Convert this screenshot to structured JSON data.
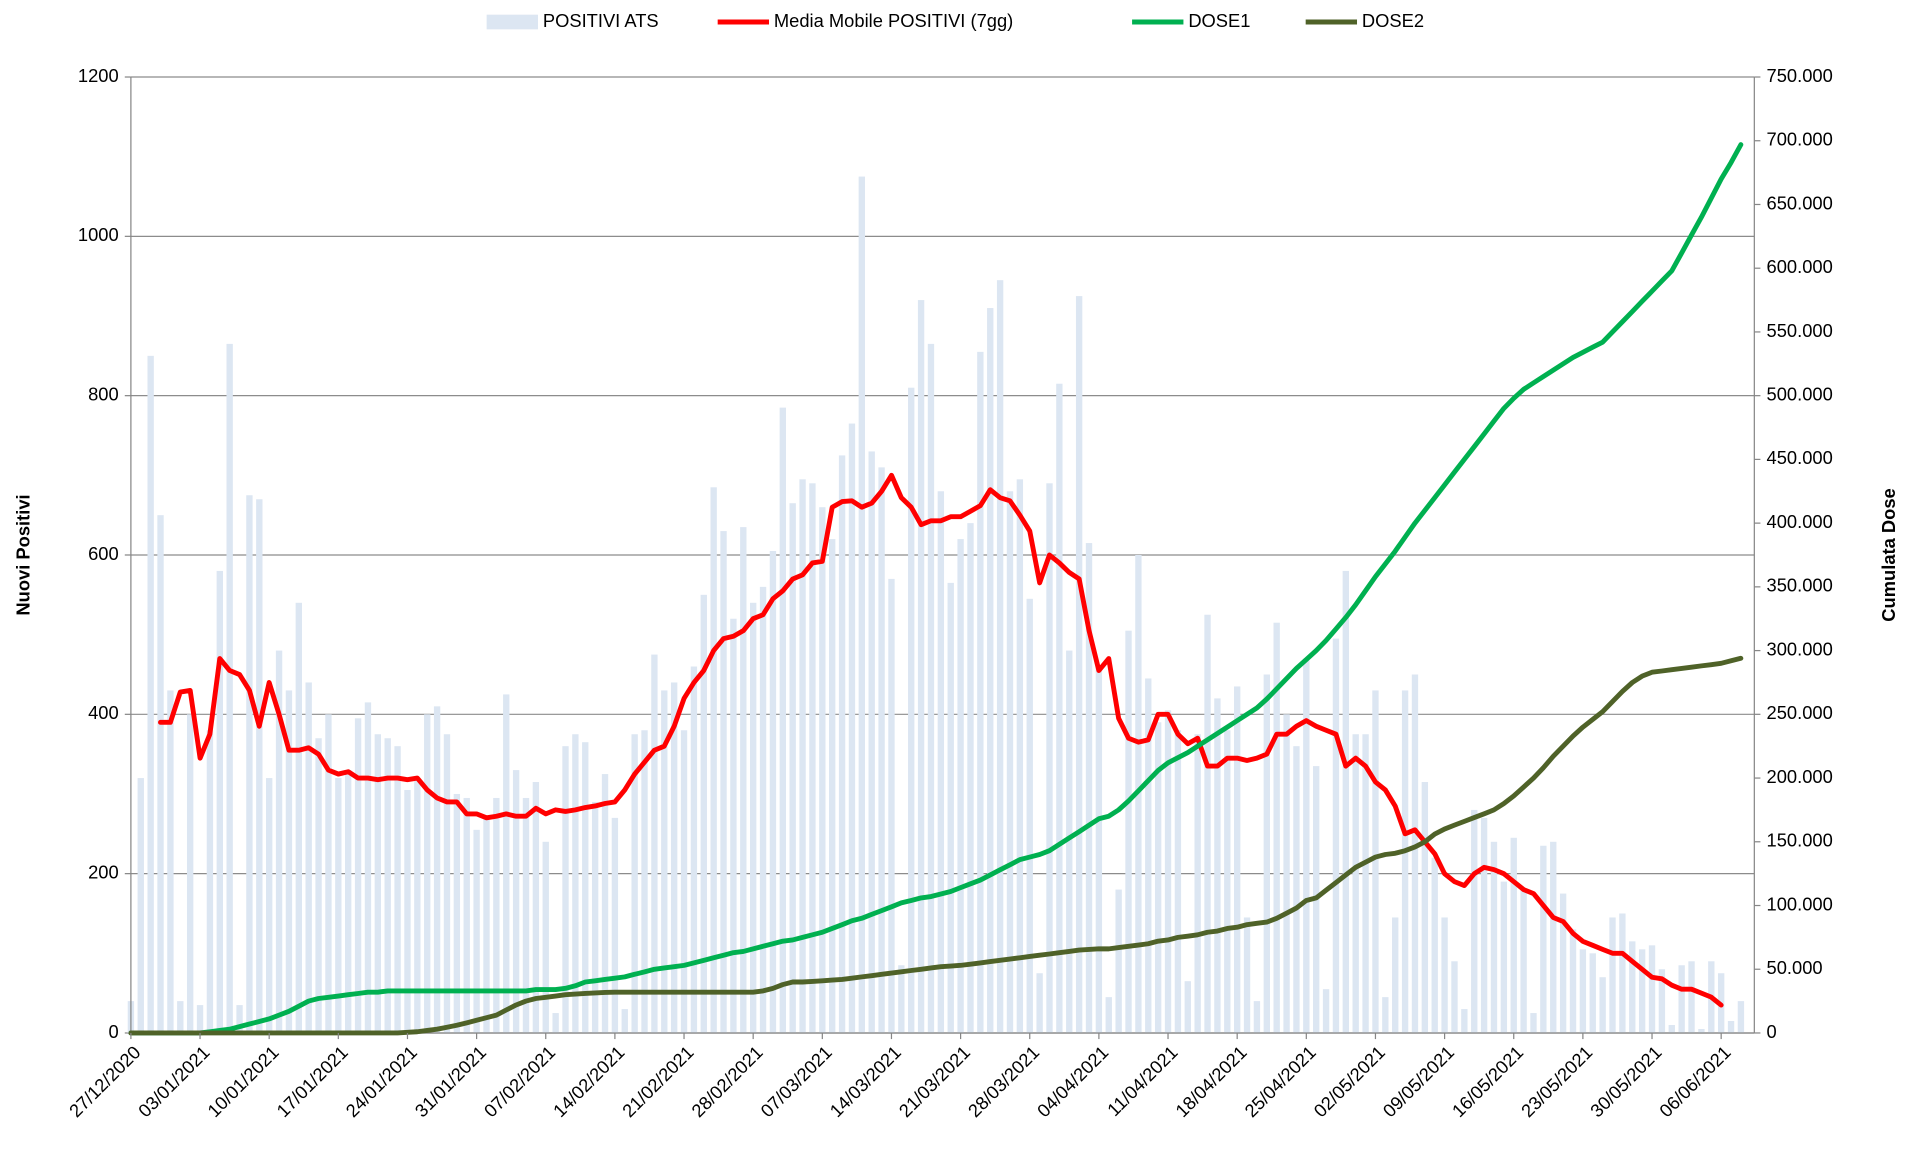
{
  "chart_data": {
    "type": "bar",
    "y_label": "Nuovi Positivi",
    "y2_label": "Cumulata Dose",
    "categories": [
      "27/12/2020",
      null,
      null,
      null,
      null,
      null,
      null,
      "03/01/2021",
      null,
      null,
      null,
      null,
      null,
      null,
      "10/01/2021",
      null,
      null,
      null,
      null,
      null,
      null,
      "17/01/2021",
      null,
      null,
      null,
      null,
      null,
      null,
      "24/01/2021",
      null,
      null,
      null,
      null,
      null,
      null,
      "31/01/2021",
      null,
      null,
      null,
      null,
      null,
      null,
      "07/02/2021",
      null,
      null,
      null,
      null,
      null,
      null,
      "14/02/2021",
      null,
      null,
      null,
      null,
      null,
      null,
      "21/02/2021",
      null,
      null,
      null,
      null,
      null,
      null,
      "28/02/2021",
      null,
      null,
      null,
      null,
      null,
      null,
      "07/03/2021",
      null,
      null,
      null,
      null,
      null,
      null,
      "14/03/2021",
      null,
      null,
      null,
      null,
      null,
      null,
      "21/03/2021",
      null,
      null,
      null,
      null,
      null,
      null,
      "28/03/2021",
      null,
      null,
      null,
      null,
      null,
      null,
      "04/04/2021",
      null,
      null,
      null,
      null,
      null,
      null,
      "11/04/2021",
      null,
      null,
      null,
      null,
      null,
      null,
      "18/04/2021",
      null,
      null,
      null,
      null,
      null,
      null,
      "25/04/2021",
      null,
      null,
      null,
      null,
      null,
      null,
      "02/05/2021",
      null,
      null,
      null,
      null,
      null,
      null,
      "09/05/2021",
      null,
      null,
      null,
      null,
      null,
      null,
      "16/05/2021",
      null,
      null,
      null,
      null,
      null,
      null,
      "23/05/2021",
      null,
      null,
      null,
      null,
      null,
      null,
      "30/05/2021",
      null,
      null,
      null,
      null,
      null,
      null,
      "06/06/2021",
      null,
      null
    ],
    "ylim": [
      0,
      1200
    ],
    "yticks": [
      0,
      200,
      400,
      600,
      800,
      1000,
      1200
    ],
    "y2lim": [
      0,
      750000
    ],
    "y2ticks": [
      0,
      {
        "value": 50000,
        "label": "50.000"
      },
      {
        "value": 100000,
        "label": "100.000"
      },
      {
        "value": 150000,
        "label": "150.000"
      },
      {
        "value": 200000,
        "label": "200.000"
      },
      {
        "value": 250000,
        "label": "250.000"
      },
      {
        "value": 300000,
        "label": "300.000"
      },
      {
        "value": 350000,
        "label": "350.000"
      },
      {
        "value": 400000,
        "label": "400.000"
      },
      {
        "value": 450000,
        "label": "450.000"
      },
      {
        "value": 500000,
        "label": "500.000"
      },
      {
        "value": 550000,
        "label": "550.000"
      },
      {
        "value": 600000,
        "label": "600.000"
      },
      {
        "value": 650000,
        "label": "650.000"
      },
      {
        "value": 700000,
        "label": "700.000"
      },
      {
        "value": 750000,
        "label": "750.000"
      }
    ],
    "grid": true,
    "legend": "top",
    "series": [
      {
        "name": "POSITIVI ATS",
        "type": "bar",
        "color": "#dce6f2",
        "values": [
          40,
          320,
          850,
          650,
          430,
          40,
          400,
          35,
          380,
          580,
          865,
          35,
          675,
          670,
          320,
          480,
          430,
          540,
          440,
          370,
          400,
          320,
          330,
          395,
          415,
          375,
          370,
          360,
          305,
          320,
          400,
          410,
          375,
          300,
          295,
          255,
          270,
          295,
          425,
          330,
          295,
          315,
          240,
          25,
          360,
          375,
          365,
          290,
          325,
          270,
          30,
          375,
          380,
          475,
          430,
          440,
          380,
          460,
          550,
          685,
          630,
          520,
          635,
          540,
          560,
          605,
          785,
          665,
          695,
          690,
          660,
          620,
          725,
          765,
          1075,
          730,
          710,
          570,
          85,
          810,
          920,
          865,
          680,
          565,
          620,
          640,
          855,
          910,
          945,
          680,
          695,
          545,
          75,
          690,
          815,
          480,
          925,
          615,
          460,
          45,
          180,
          505,
          600,
          445,
          390,
          405,
          380,
          65,
          375,
          525,
          420,
          380,
          435,
          145,
          40,
          450,
          515,
          400,
          360,
          470,
          335,
          55,
          495,
          580,
          375,
          375,
          430,
          45,
          145,
          430,
          450,
          315,
          220,
          145,
          90,
          30,
          280,
          270,
          240,
          190,
          245,
          180,
          25,
          235,
          240,
          175,
          130,
          105,
          100,
          70,
          145,
          150,
          115,
          105,
          110,
          80,
          10,
          85,
          90,
          5,
          90,
          75,
          15,
          40
        ]
      },
      {
        "name": "Media Mobile POSITIVI (7gg)",
        "type": "line",
        "color": "#ff0000",
        "values": [
          null,
          null,
          null,
          390,
          390,
          428,
          430,
          345,
          375,
          470,
          455,
          450,
          430,
          385,
          440,
          400,
          355,
          355,
          358,
          350,
          330,
          325,
          328,
          320,
          320,
          318,
          320,
          320,
          318,
          320,
          305,
          295,
          290,
          290,
          275,
          275,
          270,
          272,
          275,
          272,
          272,
          282,
          275,
          280,
          278,
          280,
          283,
          285,
          288,
          290,
          305,
          325,
          340,
          355,
          360,
          385,
          420,
          440,
          455,
          480,
          495,
          498,
          505,
          520,
          525,
          545,
          555,
          570,
          575,
          590,
          592,
          660,
          667,
          668,
          660,
          665,
          680,
          700,
          672,
          660,
          638,
          643,
          643,
          648,
          648,
          655,
          662,
          682,
          672,
          668,
          650,
          630,
          565,
          600,
          590,
          578,
          570,
          505,
          455,
          470,
          395,
          370,
          365,
          368,
          400,
          400,
          375,
          363,
          370,
          335,
          335,
          345,
          345,
          342,
          345,
          350,
          375,
          375,
          385,
          392,
          385,
          380,
          375,
          335,
          345,
          335,
          315,
          305,
          285,
          250,
          255,
          240,
          225,
          200,
          190,
          185,
          200,
          208,
          205,
          200,
          190,
          180,
          175,
          160,
          145,
          140,
          125,
          115,
          110,
          105,
          100,
          100,
          90,
          80,
          70,
          68,
          60,
          55,
          55,
          50,
          45,
          35,
          null,
          null
        ]
      },
      {
        "name": "DOSE1",
        "type": "line",
        "axis": "y2",
        "color": "#00b050",
        "values": [
          0,
          0,
          0,
          0,
          0,
          0,
          0,
          0,
          1000,
          2000,
          3000,
          5000,
          7000,
          9000,
          11000,
          14000,
          17000,
          21000,
          25000,
          27000,
          28000,
          29000,
          30000,
          31000,
          32000,
          32000,
          33000,
          33000,
          33000,
          33000,
          33000,
          33000,
          33000,
          33000,
          33000,
          33000,
          33000,
          33000,
          33000,
          33000,
          33000,
          34000,
          34000,
          34000,
          35000,
          37000,
          40000,
          41000,
          42000,
          43000,
          44000,
          46000,
          48000,
          50000,
          51000,
          52000,
          53000,
          55000,
          57000,
          59000,
          61000,
          63000,
          64000,
          66000,
          68000,
          70000,
          72000,
          73000,
          75000,
          77000,
          79000,
          82000,
          85000,
          88000,
          90000,
          93000,
          96000,
          99000,
          102000,
          104000,
          106000,
          107000,
          109000,
          111000,
          114000,
          117000,
          120000,
          124000,
          128000,
          132000,
          136000,
          138000,
          140000,
          143000,
          148000,
          153000,
          158000,
          163000,
          168000,
          170000,
          175000,
          182000,
          190000,
          198000,
          206000,
          212000,
          216000,
          220000,
          225000,
          230000,
          235000,
          240000,
          245000,
          250000,
          255000,
          262000,
          270000,
          278000,
          286000,
          293000,
          300000,
          308000,
          317000,
          326000,
          336000,
          347000,
          358000,
          368000,
          378000,
          389000,
          400000,
          410000,
          420000,
          430000,
          440000,
          450000,
          460000,
          470000,
          480000,
          490000,
          498000,
          505000,
          510000,
          515000,
          520000,
          525000,
          530000,
          534000,
          538000,
          542000,
          550000,
          558000,
          566000,
          574000,
          582000,
          590000,
          598000,
          612000,
          626000,
          640000,
          655000,
          670000,
          683000,
          697000
        ]
      },
      {
        "name": "DOSE2",
        "type": "line",
        "axis": "y2",
        "color": "#4f6228",
        "values": [
          0,
          0,
          0,
          0,
          0,
          0,
          0,
          0,
          0,
          0,
          0,
          0,
          0,
          0,
          0,
          0,
          0,
          0,
          0,
          0,
          0,
          0,
          0,
          0,
          0,
          0,
          0,
          0,
          500,
          1000,
          2000,
          3000,
          4500,
          6000,
          8000,
          10000,
          12000,
          14000,
          18000,
          22000,
          25000,
          27000,
          28000,
          29000,
          30000,
          30500,
          31000,
          31500,
          31800,
          32000,
          32000,
          32000,
          32000,
          32000,
          32000,
          32000,
          32000,
          32000,
          32000,
          32000,
          32000,
          32000,
          32000,
          32000,
          33000,
          35000,
          38000,
          40000,
          40000,
          40500,
          41000,
          41500,
          42000,
          43000,
          44000,
          45000,
          46000,
          47000,
          48000,
          49000,
          50000,
          51000,
          52000,
          52500,
          53000,
          54000,
          55000,
          56000,
          57000,
          58000,
          59000,
          60000,
          61000,
          62000,
          63000,
          64000,
          65000,
          65500,
          66000,
          66000,
          67000,
          68000,
          69000,
          70000,
          72000,
          73000,
          75000,
          76000,
          77000,
          79000,
          80000,
          82000,
          83000,
          85000,
          86000,
          87000,
          90000,
          94000,
          98000,
          104000,
          106000,
          112000,
          118000,
          124000,
          130000,
          134000,
          138000,
          140000,
          141000,
          143000,
          146000,
          150000,
          156000,
          160000,
          163000,
          166000,
          169000,
          172000,
          175000,
          180000,
          186000,
          193000,
          200000,
          208000,
          217000,
          225000,
          233000,
          240000,
          246000,
          252000,
          260000,
          268000,
          275000,
          280000,
          283000,
          284000,
          285000,
          286000,
          287000,
          288000,
          289000,
          290000,
          292000,
          294000
        ]
      }
    ]
  }
}
